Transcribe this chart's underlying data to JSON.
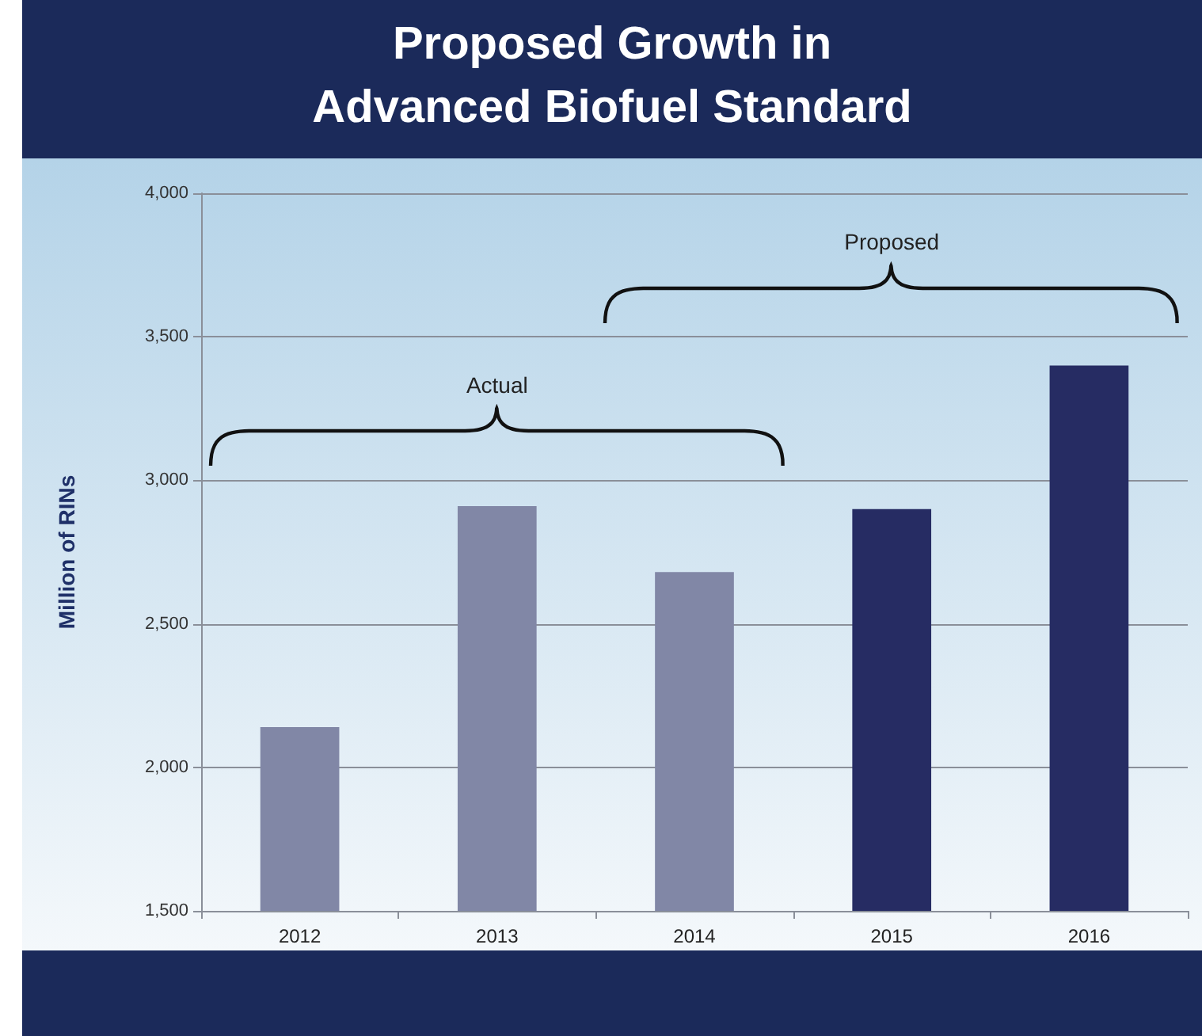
{
  "chart_data": {
    "type": "bar",
    "title": "Proposed Growth in\nAdvanced Biofuel Standard",
    "ylabel": "Million of RINs",
    "categories": [
      "2012",
      "2013",
      "2014",
      "2015",
      "2016"
    ],
    "values": [
      2140,
      2910,
      2680,
      2900,
      3400
    ],
    "colors": [
      "#8187a6",
      "#8187a6",
      "#8187a6",
      "#262c63",
      "#262c63"
    ],
    "ylim": [
      1500,
      4000
    ],
    "yticks": [
      {
        "value": 1500,
        "label": "1,500"
      },
      {
        "value": 2000,
        "label": "2,000"
      },
      {
        "value": 2500,
        "label": "2,500"
      },
      {
        "value": 3000,
        "label": "3,000"
      },
      {
        "value": 3500,
        "label": "3,500"
      },
      {
        "value": 4000,
        "label": "4,000"
      }
    ],
    "grid": "y",
    "annotations": [
      "Actual",
      "Proposed"
    ]
  }
}
